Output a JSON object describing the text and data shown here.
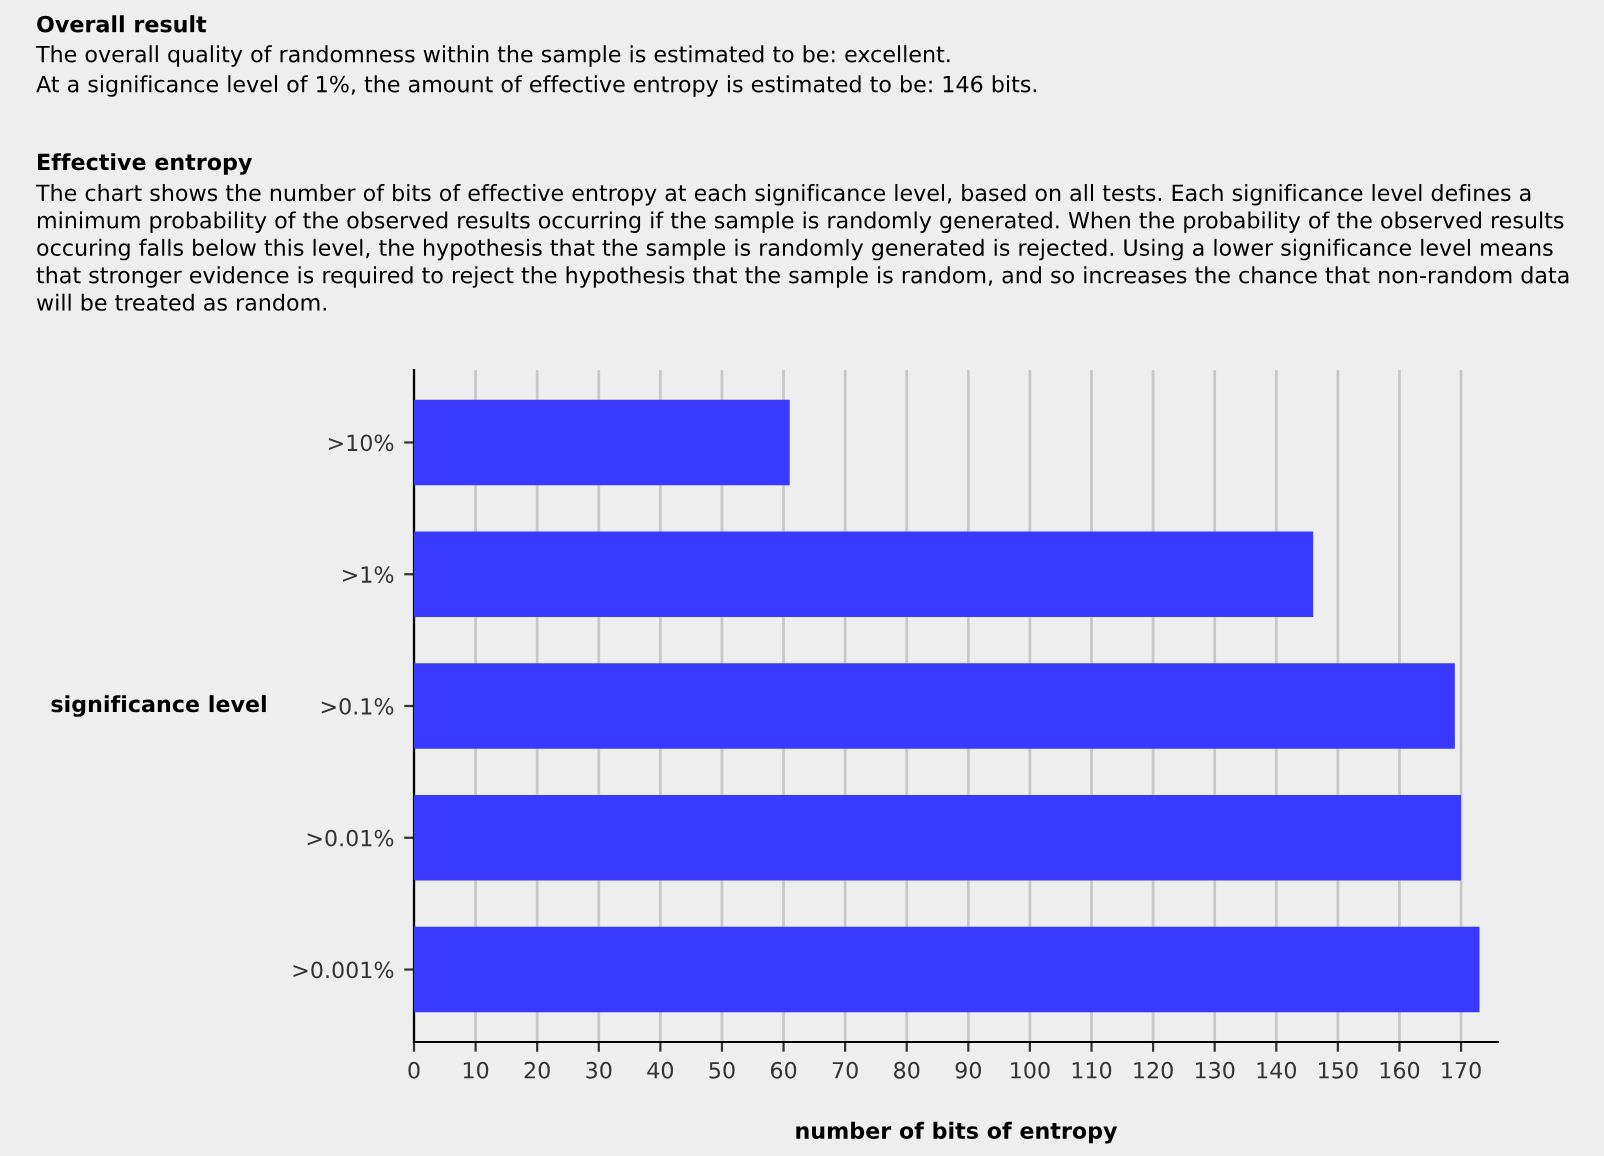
{
  "chart_data": {
    "type": "bar",
    "orientation": "horizontal",
    "title": "Overall result",
    "annotations": [
      "The overall quality of randomness within the sample is estimated to be: excellent.",
      "At a significance level of 1%, the amount of effective entropy is estimated to be: 146 bits.",
      "Effective entropy",
      "The chart shows the number of bits of effective entropy at each significance level, based on all tests. Each significance level defines a minimum probability of the observed results occurring if the sample is randomly generated. When the probability of the observed results occuring falls below this level, the hypothesis that the sample is randomly generated is rejected. Using a lower significance level means that stronger evidence is required to reject the hypothesis that the sample is random, and so increases the chance that non-random data will be treated as random."
    ],
    "categories": [
      ">10%",
      ">1%",
      ">0.1%",
      ">0.01%",
      ">0.001%"
    ],
    "values": [
      61,
      146,
      169,
      170,
      173
    ],
    "color": "#3939ff",
    "xlim": [
      0,
      176
    ],
    "xticks": [
      0,
      10,
      20,
      30,
      40,
      50,
      60,
      70,
      80,
      90,
      100,
      110,
      120,
      130,
      140,
      150,
      160,
      170
    ],
    "xlabel": "number of bits of entropy",
    "ylabel": "significance level",
    "grid": "x"
  }
}
